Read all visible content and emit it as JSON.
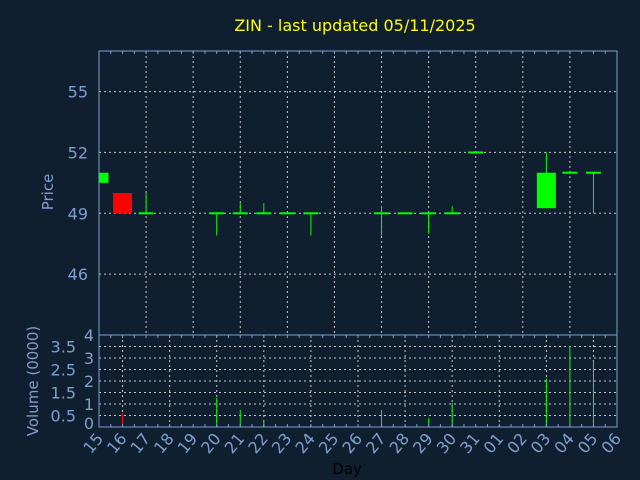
{
  "chart_data": {
    "type": "candlestick",
    "title": "ZIN - last updated 05/11/2025",
    "xlabel": "Day",
    "ylabel": "Price",
    "volume_ylabel": "Volume (0000)",
    "x_tick_labels": [
      "15",
      "16",
      "17",
      "18",
      "19",
      "20",
      "21",
      "22",
      "23",
      "24",
      "25",
      "26",
      "27",
      "28",
      "29",
      "30",
      "31",
      "01",
      "02",
      "03",
      "04",
      "05",
      "06"
    ],
    "price_ylim": [
      43,
      57
    ],
    "price_ticks": [
      46,
      49,
      52,
      55
    ],
    "volume_ylim": [
      0,
      4
    ],
    "volume_ticks": [
      "0",
      "0.5",
      "1",
      "1.5",
      "2",
      "2.5",
      "3",
      "3.5",
      "4"
    ],
    "grid": true,
    "colors": {
      "background": "#0f1f2f",
      "up": "#00ff00",
      "down": "#ff0000",
      "axis": "#7f9fcf",
      "title": "#ffff00",
      "grid": "#c8c8c8"
    },
    "candles": [
      {
        "day": "15",
        "open": 50.5,
        "high": 51,
        "low": 50.5,
        "close": 51,
        "volume": 0
      },
      {
        "day": "16",
        "open": 50,
        "high": 50,
        "low": 49,
        "close": 49,
        "volume": 0.6
      },
      {
        "day": "17",
        "open": 49,
        "high": 50,
        "low": 49,
        "close": 49,
        "volume": 0.07
      },
      {
        "day": "20",
        "open": 49,
        "high": 49,
        "low": 47.9,
        "close": 49,
        "volume": 1.27
      },
      {
        "day": "21",
        "open": 49,
        "high": 49.5,
        "low": 49,
        "close": 49,
        "volume": 0.74
      },
      {
        "day": "22",
        "open": 49,
        "high": 49.5,
        "low": 49,
        "close": 49,
        "volume": 0.22
      },
      {
        "day": "23",
        "open": 49,
        "high": 49,
        "low": 49,
        "close": 49,
        "volume": 0
      },
      {
        "day": "24",
        "open": 49,
        "high": 49,
        "low": 47.9,
        "close": 49,
        "volume": 0.07
      },
      {
        "day": "27",
        "open": 49,
        "high": 49.35,
        "low": 47.9,
        "close": 49,
        "volume": 0.74
      },
      {
        "day": "28",
        "open": 49,
        "high": 49,
        "low": 49,
        "close": 49,
        "volume": 0
      },
      {
        "day": "29",
        "open": 49,
        "high": 49,
        "low": 48,
        "close": 49,
        "volume": 0.39
      },
      {
        "day": "30",
        "open": 49,
        "high": 49.35,
        "low": 49,
        "close": 49,
        "volume": 1.04
      },
      {
        "day": "31",
        "open": 52,
        "high": 52,
        "low": 52,
        "close": 52,
        "volume": 0
      },
      {
        "day": "03",
        "open": 49.25,
        "high": 52,
        "low": 49.25,
        "close": 51,
        "volume": 2.1
      },
      {
        "day": "04",
        "open": 51,
        "high": 51,
        "low": 51,
        "close": 51,
        "volume": 3.52
      },
      {
        "day": "05",
        "open": 51,
        "high": 51,
        "low": 49,
        "close": 51,
        "volume": 2.87
      }
    ]
  }
}
